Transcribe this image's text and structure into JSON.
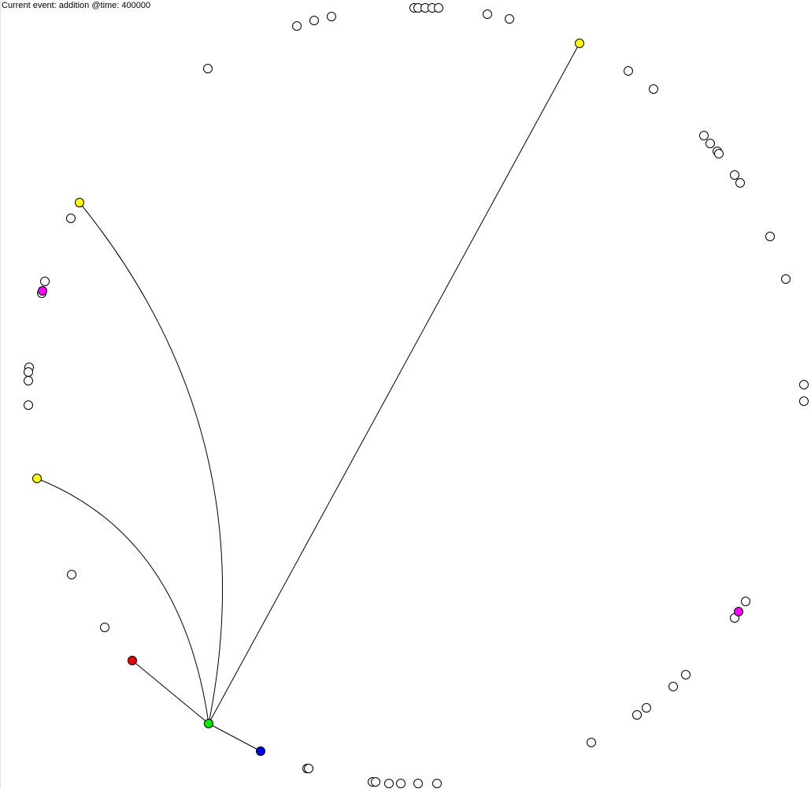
{
  "status": {
    "label": "Current event: addition @time: 400000"
  },
  "colors": {
    "node_default": "#ffffff",
    "node_stroke": "#000000",
    "edge": "#000000",
    "hub": "#00ee00",
    "yellow": "#ffff00",
    "red": "#ee0000",
    "blue": "#0000ee",
    "magenta": "#ff00ff"
  },
  "graph": {
    "node_count": 62,
    "highlighted_nodes": [
      {
        "id": "hub",
        "color": "green"
      },
      {
        "id": "yellow-top-right",
        "color": "yellow"
      },
      {
        "id": "yellow-left-upper",
        "color": "yellow"
      },
      {
        "id": "yellow-left-lower",
        "color": "yellow"
      },
      {
        "id": "red-node",
        "color": "red"
      },
      {
        "id": "blue-node",
        "color": "blue"
      },
      {
        "id": "magenta-left",
        "color": "magenta"
      },
      {
        "id": "magenta-right",
        "color": "magenta"
      }
    ],
    "edges": [
      {
        "from": "hub",
        "to": "yellow-top-right"
      },
      {
        "from": "hub",
        "to": "yellow-left-upper"
      },
      {
        "from": "hub",
        "to": "yellow-left-lower"
      },
      {
        "from": "hub",
        "to": "red-node"
      },
      {
        "from": "hub",
        "to": "blue-node"
      }
    ]
  }
}
